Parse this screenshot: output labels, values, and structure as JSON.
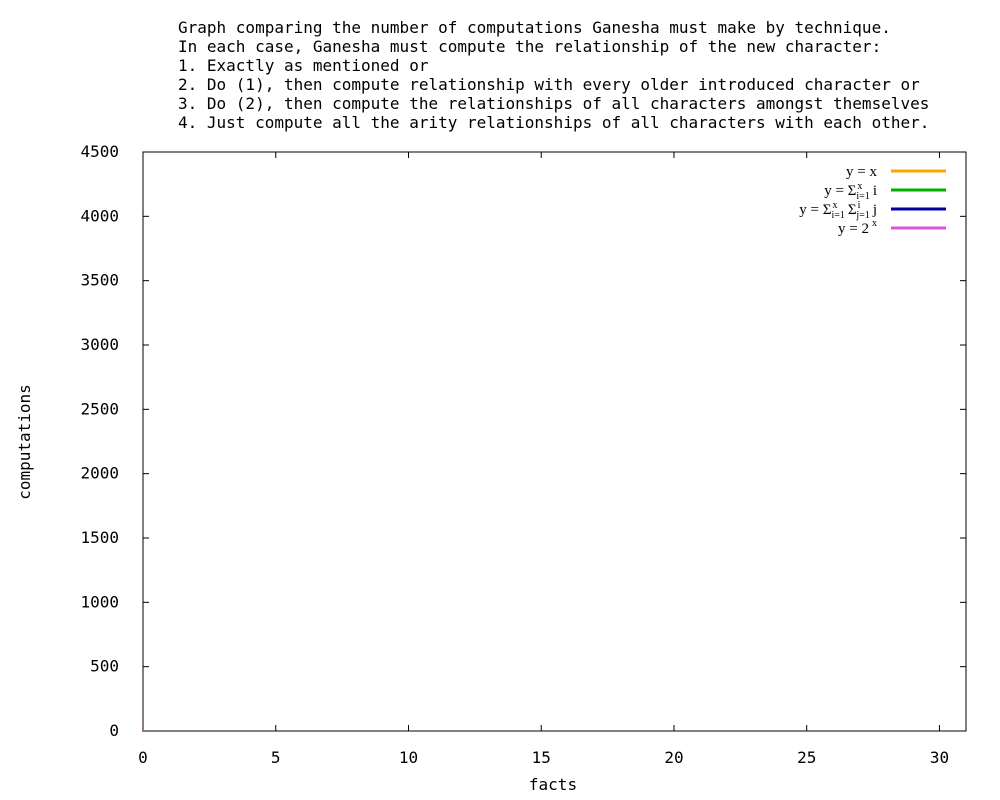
{
  "chart_data": {
    "type": "line",
    "title_lines": [
      "Graph comparing the number of computations Ganesha must make by technique.",
      "In each case, Ganesha must compute the relationship of the new character:",
      "1. Exactly as mentioned or",
      "2. Do (1), then compute relationship with every older introduced character or",
      "3. Do (2), then compute the relationships of all characters amongst themselves",
      "4. Just compute all the arity relationships of all characters with each other."
    ],
    "xlabel": "facts",
    "ylabel": "computations",
    "xlim": [
      0,
      31
    ],
    "ylim": [
      0,
      4500
    ],
    "x_ticks": [
      0,
      5,
      10,
      15,
      20,
      25,
      30
    ],
    "y_ticks": [
      0,
      500,
      1000,
      1500,
      2000,
      2500,
      3000,
      3500,
      4000,
      4500
    ],
    "legend_position": "top-right",
    "series": [
      {
        "name": "y = x",
        "color": "#ffa500",
        "x": [
          0
        ],
        "y": [
          0
        ]
      },
      {
        "name": "y = Σ_{i=1}^{x} i",
        "color": "#00b000",
        "x": [
          0
        ],
        "y": [
          0
        ]
      },
      {
        "name": "y = Σ_{i=1}^{x} Σ_{j=1}^{i} j",
        "color": "#0000a0",
        "x": [
          0
        ],
        "y": [
          0
        ]
      },
      {
        "name": "y = 2^x",
        "color": "#e050e0",
        "x": [
          0
        ],
        "y": [
          1
        ]
      }
    ]
  }
}
